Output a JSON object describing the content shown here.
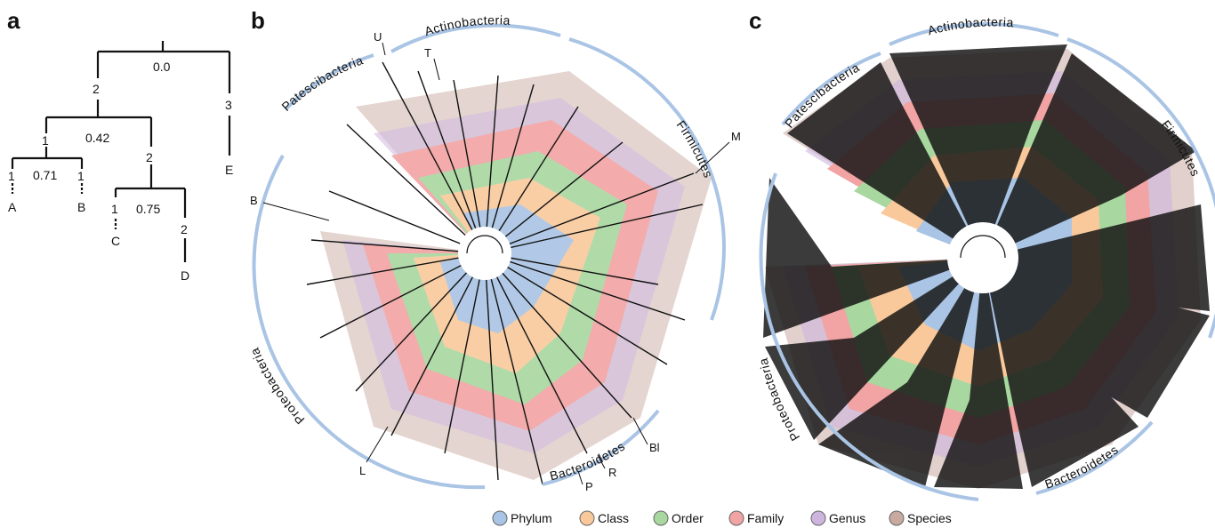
{
  "panels": {
    "a": {
      "letter": "a"
    },
    "b": {
      "letter": "b"
    },
    "c": {
      "letter": "c"
    }
  },
  "panel_a": {
    "root_value": "0.0",
    "left_branch_count": "2",
    "right_branch_count": "3",
    "node_ab_c_value": "0.42",
    "node_ab_count": "1",
    "node_cd_count": "2",
    "node_ab_value": "0.71",
    "leaf_a_count": "1",
    "leaf_b_count": "1",
    "node_cd_value": "0.75",
    "leaf_c_count": "1",
    "leaf_d_count": "2",
    "leaves": {
      "a": "A",
      "b": "B",
      "c": "C",
      "d": "D",
      "e": "E"
    }
  },
  "panel_b": {
    "clades": {
      "actinobacteria": "Actinobacteria",
      "patescibacteria": "Patescibacteria",
      "firmicutes": "Firmicutes",
      "proteobacteria": "Proteobacteria",
      "bacteroidetes": "Bacteroidetes"
    },
    "markers": {
      "u": "U",
      "t": "T",
      "m": "M",
      "b": "B",
      "l": "L",
      "p": "P",
      "r": "R",
      "bl": "Bl"
    }
  },
  "panel_c": {
    "clades": {
      "actinobacteria": "Actinobacteria",
      "patescibacteria": "Patescibacteria",
      "firmicutes": "Firmicutes",
      "proteobacteria": "Proteobacteria",
      "bacteroidetes": "Bacteroidetes"
    }
  },
  "legend": {
    "items": [
      {
        "label": "Phylum",
        "color": "#a9c4e4"
      },
      {
        "label": "Class",
        "color": "#f9c99c"
      },
      {
        "label": "Order",
        "color": "#a8d8a0"
      },
      {
        "label": "Family",
        "color": "#f2a3a3"
      },
      {
        "label": "Genus",
        "color": "#cdb5e0"
      },
      {
        "label": "Species",
        "color": "#c9aaa0"
      }
    ]
  },
  "colors": {
    "clade_arc": "#a9c4e4",
    "branch": "#111111"
  }
}
